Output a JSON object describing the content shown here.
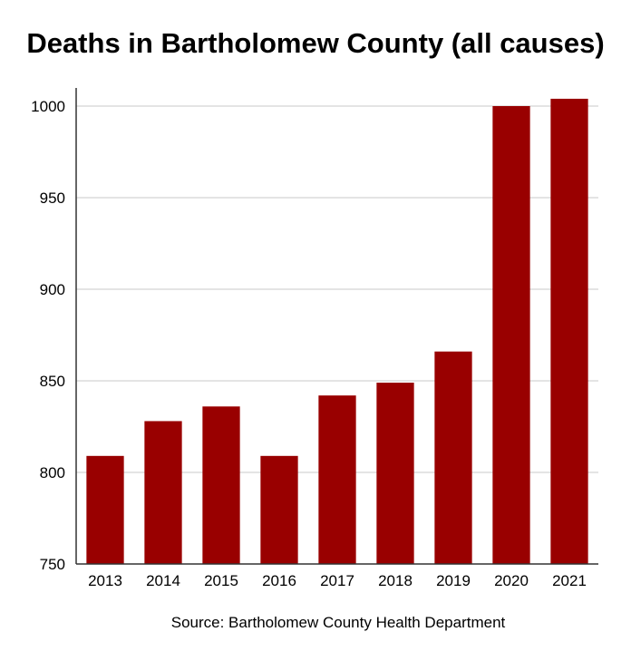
{
  "chart_data": {
    "type": "bar",
    "title": "Deaths in Bartholomew County (all causes)",
    "source": "Source: Bartholomew County Health Department",
    "categories": [
      "2013",
      "2014",
      "2015",
      "2016",
      "2017",
      "2018",
      "2019",
      "2020",
      "2021"
    ],
    "values": [
      809,
      828,
      836,
      809,
      842,
      849,
      866,
      1000,
      1004
    ],
    "ylim": [
      750,
      1000
    ],
    "yticks": [
      750,
      800,
      850,
      900,
      950,
      1000
    ],
    "grid": true,
    "bar_color": "#990000",
    "grid_color": "#c8c8c8",
    "axis_color": "#333333"
  }
}
